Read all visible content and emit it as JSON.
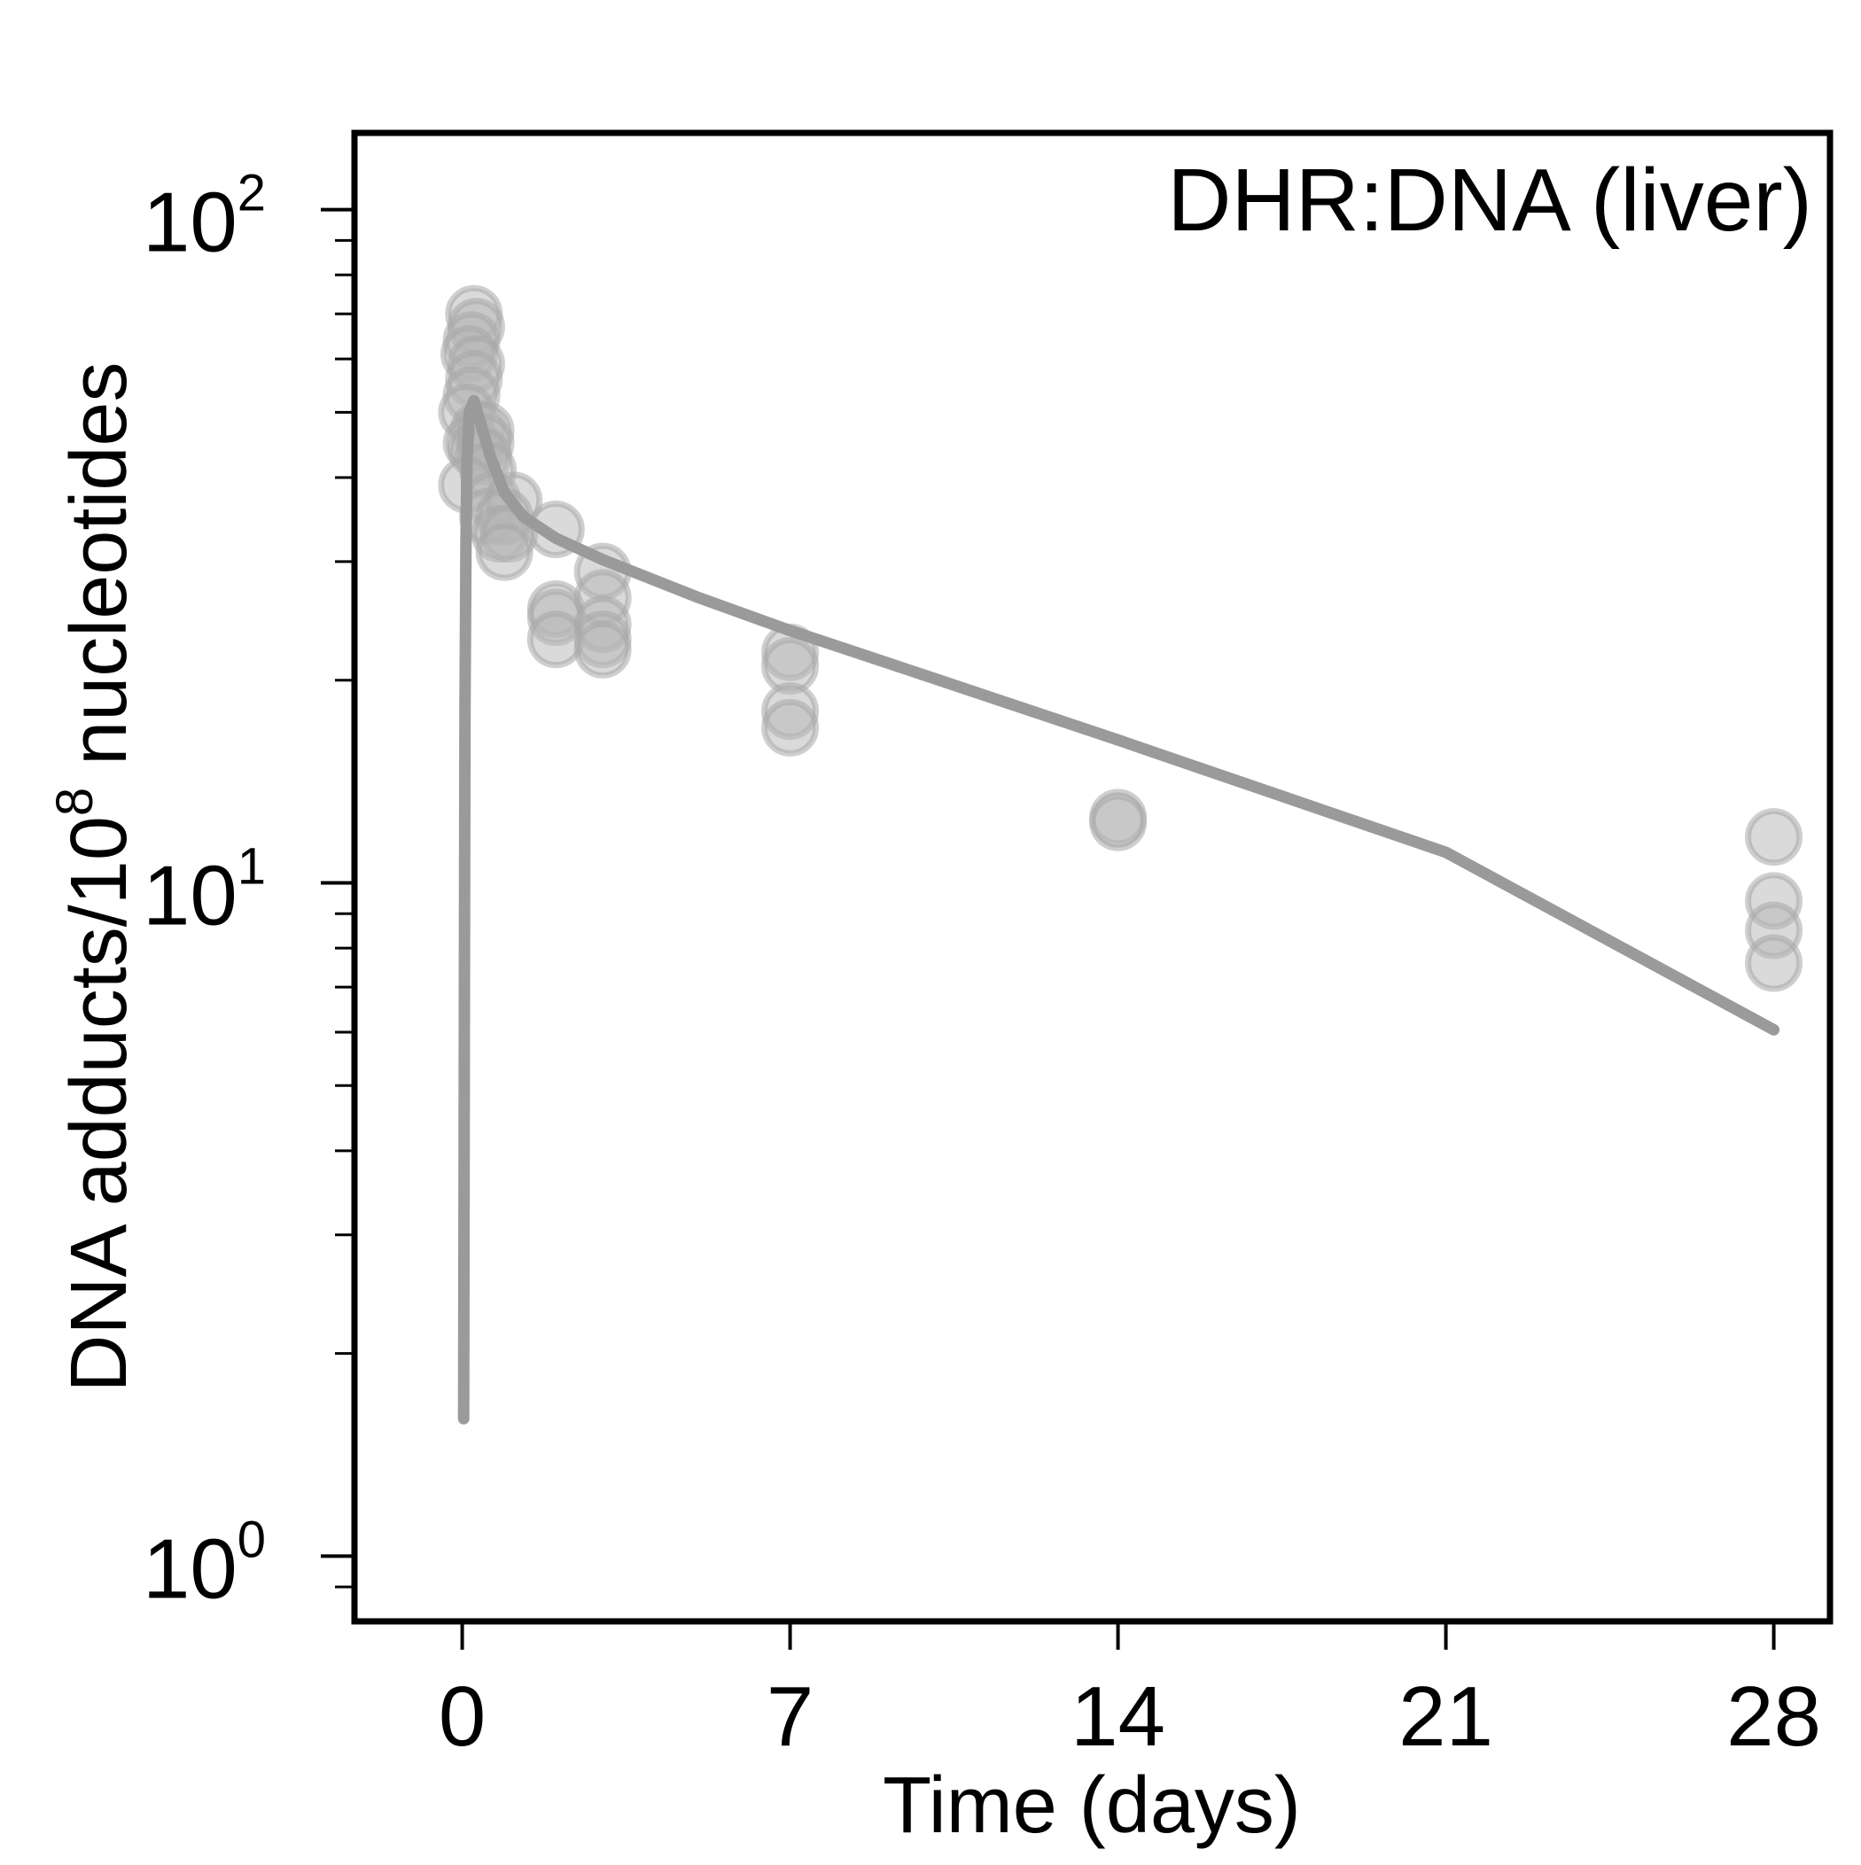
{
  "chart_data": {
    "type": "scatter",
    "title": "DHR:DNA (liver)",
    "xlabel": "Time (days)",
    "ylabel": {
      "main": "DNA adducts/10",
      "superscript": "8",
      "tail": " nucleotides"
    },
    "x_axis": {
      "range": [
        -2.3,
        29.2
      ],
      "ticks": [
        0,
        7,
        14,
        21,
        28
      ],
      "tick_labels": [
        "0",
        "7",
        "14",
        "21",
        "28"
      ]
    },
    "y_axis": {
      "scale": "log10",
      "range": [
        0.8,
        130
      ],
      "major_ticks": [
        {
          "value": 1,
          "base": "10",
          "exp": "0"
        },
        {
          "value": 10,
          "base": "10",
          "exp": "1"
        },
        {
          "value": 100,
          "base": "10",
          "exp": "2"
        }
      ],
      "minor_ticks": [
        0.9,
        2,
        3,
        4,
        5,
        6,
        7,
        8,
        9,
        20,
        30,
        40,
        50,
        60,
        70,
        80,
        90
      ]
    },
    "grid": false,
    "legend": "none",
    "colors": {
      "marker_fill": "#b5b5b5",
      "marker_stroke": "#a8a8a8",
      "fit_line": "#9a9a9a",
      "frame": "#000000"
    },
    "series": [
      {
        "type": "scatter",
        "points": [
          {
            "x": 0.25,
            "y": 70
          },
          {
            "x": 0.3,
            "y": 67
          },
          {
            "x": 0.2,
            "y": 64
          },
          {
            "x": 0.15,
            "y": 61
          },
          {
            "x": 0.3,
            "y": 59
          },
          {
            "x": 0.25,
            "y": 56
          },
          {
            "x": 0.2,
            "y": 53
          },
          {
            "x": 0.1,
            "y": 50
          },
          {
            "x": 0.35,
            "y": 47
          },
          {
            "x": 0.2,
            "y": 45
          },
          {
            "x": 0.3,
            "y": 44
          },
          {
            "x": 0.5,
            "y": 47
          },
          {
            "x": 0.5,
            "y": 45
          },
          {
            "x": 0.45,
            "y": 43
          },
          {
            "x": 0.55,
            "y": 41
          },
          {
            "x": 0.1,
            "y": 39
          },
          {
            "x": 0.65,
            "y": 37
          },
          {
            "x": 0.55,
            "y": 35
          },
          {
            "x": 1.1,
            "y": 37
          },
          {
            "x": 0.9,
            "y": 35
          },
          {
            "x": 0.8,
            "y": 33
          },
          {
            "x": 1.0,
            "y": 33
          },
          {
            "x": 0.9,
            "y": 31
          },
          {
            "x": 2.0,
            "y": 33.5
          },
          {
            "x": 2.0,
            "y": 25.5
          },
          {
            "x": 2.0,
            "y": 24.8
          },
          {
            "x": 2.0,
            "y": 23
          },
          {
            "x": 3.0,
            "y": 29
          },
          {
            "x": 3.0,
            "y": 26.5
          },
          {
            "x": 3.0,
            "y": 24.2
          },
          {
            "x": 3.0,
            "y": 23
          },
          {
            "x": 3.0,
            "y": 22.2
          },
          {
            "x": 7.0,
            "y": 22
          },
          {
            "x": 7.0,
            "y": 21
          },
          {
            "x": 7.0,
            "y": 18
          },
          {
            "x": 7.0,
            "y": 17
          },
          {
            "x": 14.0,
            "y": 12.5
          },
          {
            "x": 14.0,
            "y": 12.3
          },
          {
            "x": 28.0,
            "y": 11.7
          },
          {
            "x": 28.0,
            "y": 9.4
          },
          {
            "x": 28.0,
            "y": 8.5
          },
          {
            "x": 28.0,
            "y": 7.6
          }
        ]
      },
      {
        "type": "line",
        "points": [
          {
            "x": 0.03,
            "y": 1.6
          },
          {
            "x": 0.05,
            "y": 9
          },
          {
            "x": 0.06,
            "y": 18
          },
          {
            "x": 0.08,
            "y": 32
          },
          {
            "x": 0.1,
            "y": 42
          },
          {
            "x": 0.15,
            "y": 50
          },
          {
            "x": 0.25,
            "y": 52
          },
          {
            "x": 0.4,
            "y": 48
          },
          {
            "x": 0.6,
            "y": 43
          },
          {
            "x": 0.9,
            "y": 38
          },
          {
            "x": 1.3,
            "y": 35
          },
          {
            "x": 2.0,
            "y": 32.5
          },
          {
            "x": 3.0,
            "y": 30.2
          },
          {
            "x": 5.0,
            "y": 26.6
          },
          {
            "x": 7.0,
            "y": 23.7
          },
          {
            "x": 10.0,
            "y": 20.2
          },
          {
            "x": 14.0,
            "y": 16.3
          },
          {
            "x": 21.0,
            "y": 11.1
          },
          {
            "x": 28.0,
            "y": 6.05
          }
        ]
      }
    ]
  }
}
